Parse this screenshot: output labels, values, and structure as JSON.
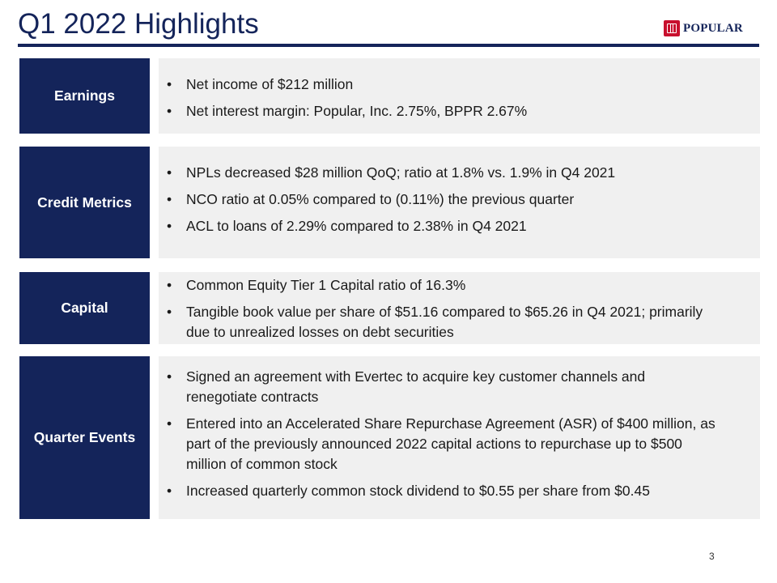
{
  "title": "Q1 2022 Highlights",
  "logo": {
    "text": "POPULAR",
    "brand_color": "#14245a",
    "mark_color": "#c8102e"
  },
  "colors": {
    "label_bg": "#14245a",
    "content_bg": "#f0f0f0",
    "title": "#14245a"
  },
  "sections": [
    {
      "label": "Earnings",
      "bullets": [
        "Net income of $212 million",
        "Net interest margin: Popular, Inc. 2.75%, BPPR 2.67%"
      ]
    },
    {
      "label": "Credit Metrics",
      "bullets": [
        "NPLs decreased $28 million QoQ; ratio at 1.8% vs. 1.9% in Q4 2021",
        "NCO ratio at 0.05% compared to (0.11%) the previous quarter",
        "ACL to loans of 2.29% compared to 2.38% in Q4 2021"
      ]
    },
    {
      "label": "Capital",
      "bullets": [
        "Common Equity Tier 1 Capital ratio of 16.3%",
        "Tangible book value per share of $51.16 compared to $65.26 in Q4 2021; primarily due to unrealized losses on debt securities"
      ]
    },
    {
      "label": "Quarter Events",
      "bullets": [
        "Signed an agreement with Evertec to acquire key customer channels and renegotiate contracts",
        "Entered into an Accelerated Share Repurchase Agreement (ASR) of $400 million, as part of the previously announced 2022 capital actions to repurchase up to $500 million of common stock",
        "Increased quarterly common stock dividend to $0.55 per share from $0.45"
      ]
    }
  ],
  "page_number": "3"
}
